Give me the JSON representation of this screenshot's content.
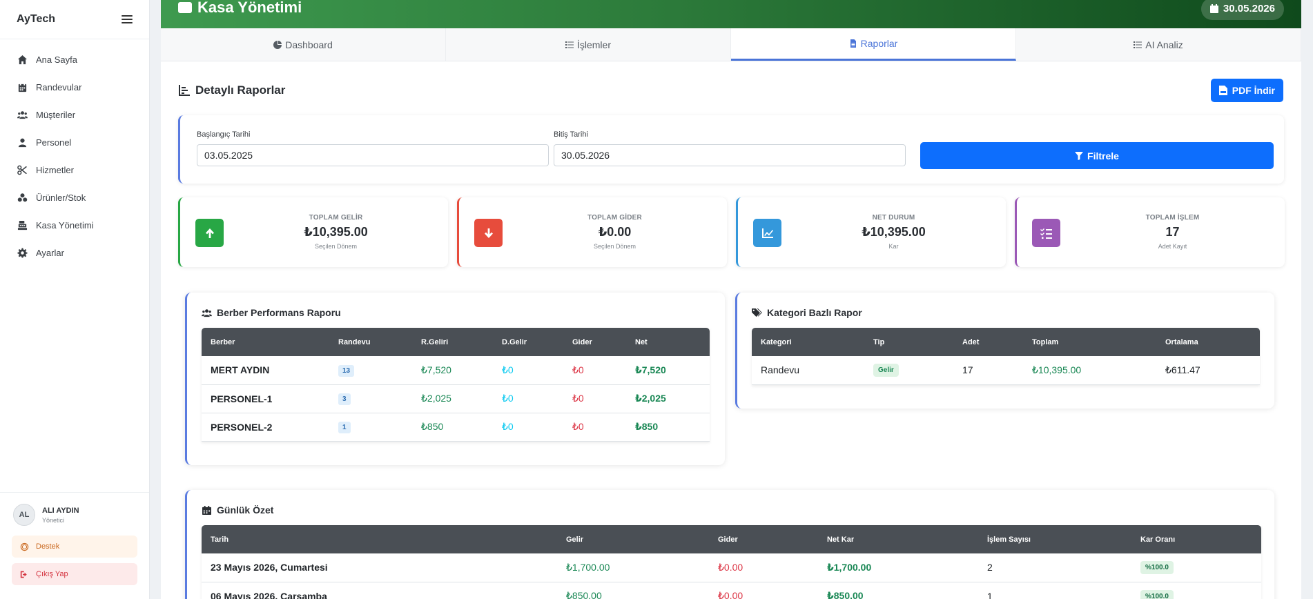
{
  "sidebar": {
    "brand": "AyTech",
    "items": [
      {
        "label": "Ana Sayfa",
        "icon": "home-icon"
      },
      {
        "label": "Randevular",
        "icon": "calendar-icon"
      },
      {
        "label": "Müşteriler",
        "icon": "users-icon"
      },
      {
        "label": "Personel",
        "icon": "user-icon"
      },
      {
        "label": "Hizmetler",
        "icon": "scissors-icon"
      },
      {
        "label": "Ürünler/Stok",
        "icon": "boxes-icon"
      },
      {
        "label": "Kasa Yönetimi",
        "icon": "cash-register-icon"
      },
      {
        "label": "Ayarlar",
        "icon": "gear-icon"
      }
    ],
    "user": {
      "initials": "AL",
      "name": "ALI AYDIN",
      "role": "Yönetici"
    },
    "support_label": "Destek",
    "logout_label": "Çıkış Yap"
  },
  "header": {
    "title": "Kasa Yönetimi",
    "date": "30.05.2026"
  },
  "tabs": [
    {
      "label": "Dashboard",
      "active": false
    },
    {
      "label": "İşlemler",
      "active": false
    },
    {
      "label": "Raporlar",
      "active": true
    },
    {
      "label": "AI Analiz",
      "active": false
    }
  ],
  "report": {
    "title": "Detaylı Raporlar",
    "pdf_label": "PDF İndir",
    "filter": {
      "start_label": "Başlangıç Tarihi",
      "start_value": "03.05.2025",
      "end_label": "Bitiş Tarihi",
      "end_value": "30.05.2026",
      "button_label": "Filtrele"
    }
  },
  "stats": [
    {
      "label": "TOPLAM GELİR",
      "value": "₺10,395.00",
      "sub": "Seçilen Dönem",
      "color": "#28a745",
      "icon": "arrow-up-icon"
    },
    {
      "label": "TOPLAM GİDER",
      "value": "₺0.00",
      "sub": "Seçilen Dönem",
      "color": "#e74c3c",
      "icon": "arrow-down-icon"
    },
    {
      "label": "NET DURUM",
      "value": "₺10,395.00",
      "sub": "Kar",
      "color": "#3498db",
      "icon": "chart-line-icon"
    },
    {
      "label": "TOPLAM İŞLEM",
      "value": "17",
      "sub": "Adet Kayıt",
      "color": "#9b59b6",
      "icon": "list-check-icon"
    }
  ],
  "barber_report": {
    "title": "Berber Performans Raporu",
    "headers": [
      "Berber",
      "Randevu",
      "R.Geliri",
      "D.Gelir",
      "Gider",
      "Net"
    ],
    "rows": [
      {
        "name": "MERT AYDIN",
        "count": "13",
        "r_income": "₺7,520",
        "d_income": "₺0",
        "expense": "₺0",
        "net": "₺7,520"
      },
      {
        "name": "PERSONEL-1",
        "count": "3",
        "r_income": "₺2,025",
        "d_income": "₺0",
        "expense": "₺0",
        "net": "₺2,025"
      },
      {
        "name": "PERSONEL-2",
        "count": "1",
        "r_income": "₺850",
        "d_income": "₺0",
        "expense": "₺0",
        "net": "₺850"
      }
    ]
  },
  "category_report": {
    "title": "Kategori Bazlı Rapor",
    "headers": [
      "Kategori",
      "Tip",
      "Adet",
      "Toplam",
      "Ortalama"
    ],
    "rows": [
      {
        "category": "Randevu",
        "type": "Gelir",
        "count": "17",
        "total": "₺10,395.00",
        "average": "₺611.47"
      }
    ]
  },
  "daily_summary": {
    "title": "Günlük Özet",
    "headers": [
      "Tarih",
      "Gelir",
      "Gider",
      "Net Kar",
      "İşlem Sayısı",
      "Kar Oranı"
    ],
    "rows": [
      {
        "date": "23 Mayıs 2026, Cumartesi",
        "income": "₺1,700.00",
        "expense": "₺0.00",
        "net": "₺1,700.00",
        "count": "2",
        "ratio": "%100.0"
      },
      {
        "date": "06 Mayıs 2026, Çarşamba",
        "income": "₺850.00",
        "expense": "₺0.00",
        "net": "₺850.00",
        "count": "1",
        "ratio": "%100.0"
      }
    ]
  }
}
